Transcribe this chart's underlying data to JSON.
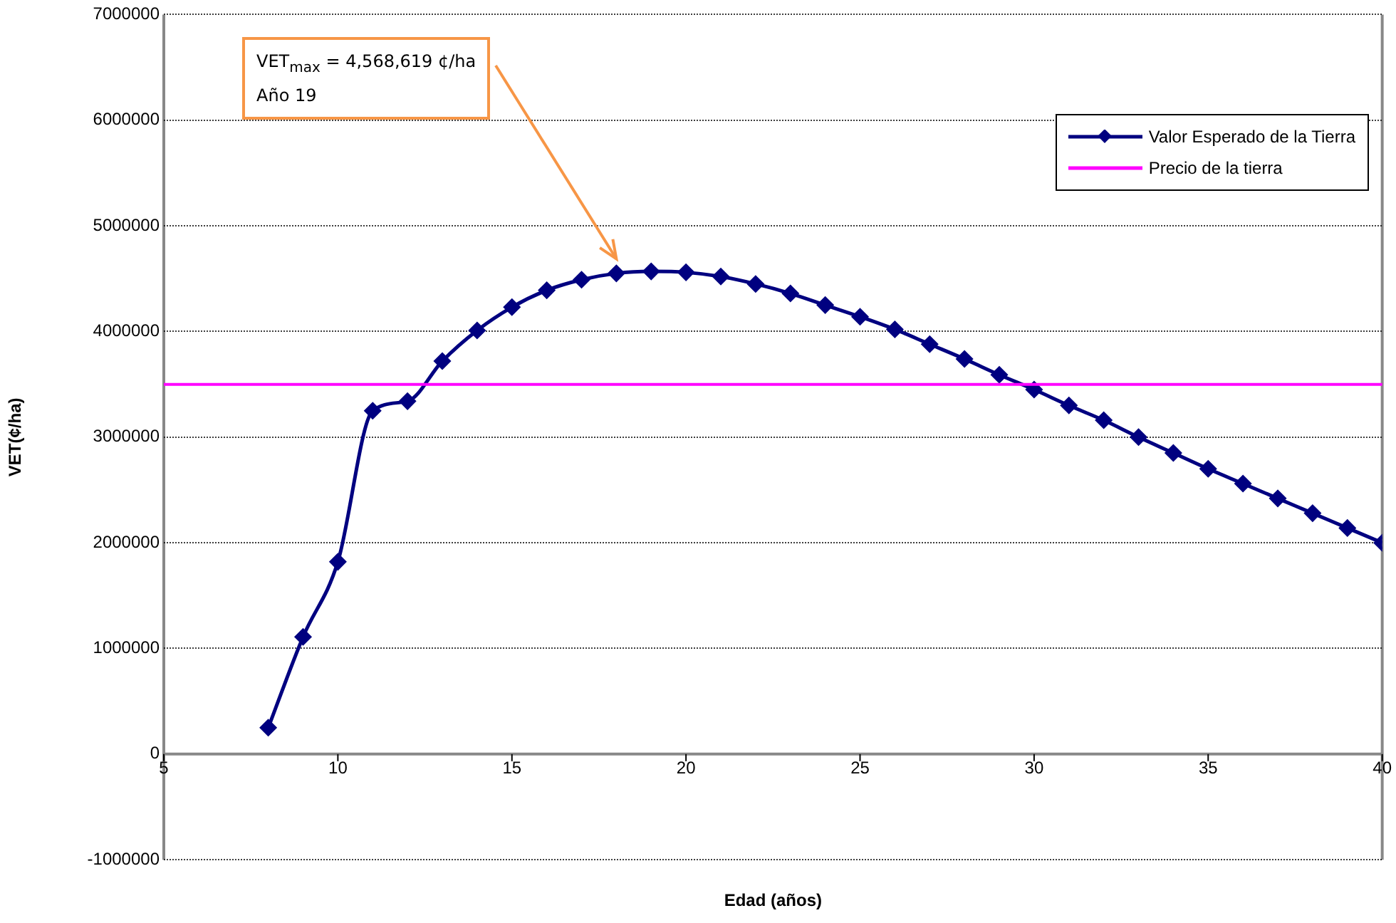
{
  "chart_data": {
    "type": "line",
    "xlabel": "Edad (años)",
    "ylabel": "VET(¢/ha)",
    "x": [
      8,
      9,
      10,
      11,
      12,
      13,
      14,
      15,
      16,
      17,
      18,
      19,
      20,
      21,
      22,
      23,
      24,
      25,
      26,
      27,
      28,
      29,
      30,
      31,
      32,
      33,
      34,
      35,
      36,
      37,
      38,
      39,
      40
    ],
    "series": [
      {
        "name": "Valor Esperado de la Tierra",
        "color": "#000080",
        "values": [
          250000,
          1110000,
          1820000,
          3250000,
          3340000,
          3720000,
          4010000,
          4230000,
          4390000,
          4490000,
          4550000,
          4568619,
          4560000,
          4520000,
          4450000,
          4360000,
          4250000,
          4140000,
          4020000,
          3880000,
          3740000,
          3590000,
          3450000,
          3300000,
          3160000,
          3000000,
          2850000,
          2700000,
          2560000,
          2420000,
          2280000,
          2140000,
          2000000
        ]
      }
    ],
    "ref_lines": [
      {
        "axis": "y",
        "value": 3500000,
        "label": "Precio de la tierra",
        "color": "#ff00ff"
      }
    ],
    "annotations": [
      "VET$_{max}$ = 4,568,619 ¢/ha\nAño 19"
    ],
    "xlim": [
      5,
      40
    ],
    "xticks": [
      5,
      10,
      15,
      20,
      25,
      30,
      35,
      40
    ],
    "ylim": [
      -1000000,
      7000000
    ],
    "yticks": [
      -1000000,
      0,
      1000000,
      2000000,
      3000000,
      4000000,
      5000000,
      6000000,
      7000000
    ],
    "grid": "y",
    "legend": "top right",
    "marker": "diamond",
    "line_style": "solid"
  }
}
